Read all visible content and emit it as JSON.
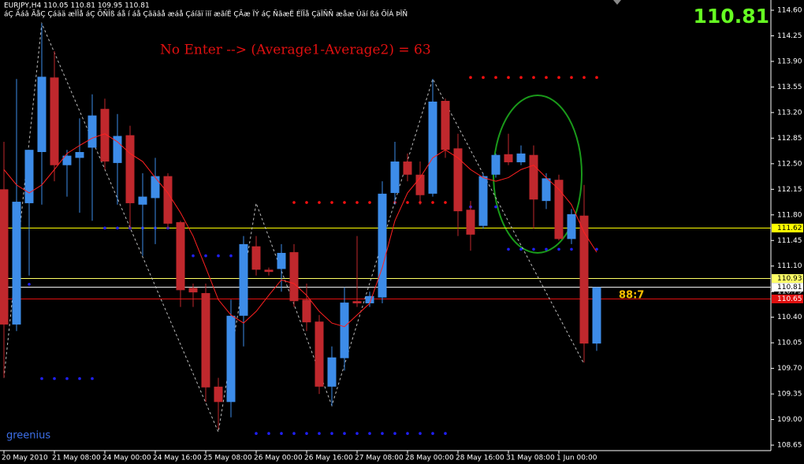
{
  "chart_data": {
    "type": "candlestick",
    "title": "EURJPY,H4  110.05 110.81 109.95 110.81",
    "subtitle": "áÇ Ãáâ ÃåÇ Çáää æÏÎå áÇ ÕÑÎß áå í áå Çãäâå æáå Çáíãï ïíí æãíË ÇÃæ ÏÝ áÇ ÑãæË ÉÏÎå ÇäÏÑÑ æåæ Úäí ßá ÕÍÁ ÞÏÑ",
    "annotation": "No Enter --> (Average1-Average2) = 63",
    "counter": "88:7",
    "price_display": "110.81",
    "signature": "greenius",
    "categories": [
      "20 May 2010",
      null,
      null,
      null,
      "21 May 08:00",
      null,
      null,
      null,
      "24 May 00:00",
      null,
      null,
      null,
      "24 May 16:00",
      null,
      null,
      null,
      "25 May 08:00",
      null,
      null,
      null,
      "26 May 00:00",
      null,
      null,
      null,
      "26 May 16:00",
      null,
      null,
      null,
      "27 May 08:00",
      null,
      null,
      null,
      "28 May 00:00",
      null,
      null,
      null,
      "28 May 16:00",
      null,
      null,
      null,
      "31 May 08:00",
      null,
      null,
      null,
      "1 Jun 00:00",
      null,
      null,
      null
    ],
    "open": [
      112.15,
      110.3,
      111.96,
      112.66,
      113.68,
      112.48,
      112.58,
      112.72,
      113.25,
      112.51,
      112.89,
      111.94,
      112.03,
      112.33,
      111.7,
      110.8,
      110.73,
      109.45,
      109.24,
      110.42,
      111.37,
      111.05,
      111.06,
      111.29,
      110.64,
      110.34,
      109.45,
      109.84,
      110.62,
      110.59,
      110.67,
      112.1,
      112.53,
      112.35,
      112.09,
      113.36,
      112.71,
      111.87,
      111.65,
      112.35,
      112.63,
      112.52,
      112.62,
      111.99,
      112.28,
      111.47,
      111.79,
      110.04
    ],
    "high": [
      112.8,
      113.66,
      112.69,
      114.42,
      114.04,
      112.69,
      113.12,
      113.45,
      113.39,
      113.18,
      113.02,
      112.37,
      112.58,
      112.37,
      111.72,
      110.86,
      110.86,
      109.57,
      110.64,
      111.51,
      111.51,
      111.08,
      111.4,
      111.4,
      110.86,
      110.43,
      110.0,
      110.81,
      111.51,
      110.75,
      112.26,
      112.8,
      112.64,
      112.53,
      113.66,
      113.39,
      112.91,
      111.99,
      112.37,
      112.64,
      112.91,
      112.75,
      112.75,
      112.37,
      112.35,
      111.88,
      112.21,
      110.81
    ],
    "low": [
      109.57,
      110.21,
      110.97,
      111.94,
      112.26,
      112.05,
      111.83,
      111.72,
      112.42,
      111.94,
      111.61,
      111.24,
      111.4,
      111.61,
      110.54,
      110.54,
      109.24,
      108.87,
      109.03,
      110.0,
      110.97,
      110.97,
      110.75,
      110.54,
      110.21,
      109.35,
      109.19,
      109.67,
      110.54,
      110.54,
      110.59,
      111.94,
      112.26,
      111.94,
      112.05,
      112.58,
      111.51,
      111.31,
      111.61,
      112.31,
      112.48,
      112.48,
      111.61,
      111.88,
      111.45,
      111.4,
      109.78,
      109.94
    ],
    "close": [
      110.3,
      111.98,
      112.69,
      113.69,
      112.48,
      112.61,
      112.66,
      113.16,
      112.53,
      112.88,
      111.96,
      112.05,
      112.33,
      111.68,
      110.77,
      110.74,
      109.44,
      109.24,
      110.42,
      111.4,
      111.05,
      111.02,
      111.28,
      110.62,
      110.33,
      109.45,
      109.85,
      110.6,
      110.59,
      110.69,
      112.09,
      112.53,
      112.35,
      112.07,
      113.35,
      112.69,
      111.85,
      111.53,
      112.33,
      112.62,
      112.52,
      112.64,
      112.01,
      112.3,
      111.47,
      111.81,
      110.04,
      110.81
    ],
    "ma": [
      112.42,
      112.21,
      112.1,
      112.21,
      112.42,
      112.64,
      112.75,
      112.85,
      112.91,
      112.8,
      112.64,
      112.53,
      112.31,
      112.1,
      111.83,
      111.51,
      111.08,
      110.64,
      110.43,
      110.32,
      110.48,
      110.7,
      110.91,
      110.86,
      110.7,
      110.48,
      110.32,
      110.27,
      110.43,
      110.59,
      111.08,
      111.72,
      112.1,
      112.31,
      112.58,
      112.69,
      112.58,
      112.42,
      112.31,
      112.26,
      112.31,
      112.42,
      112.48,
      112.31,
      112.15,
      111.94,
      111.56,
      111.29
    ],
    "zigzag": {
      "x": [
        0,
        3,
        17,
        20,
        26,
        34,
        46
      ],
      "values": [
        109.57,
        114.42,
        108.83,
        111.96,
        109.19,
        113.66,
        109.76
      ]
    },
    "dot_levels": [
      {
        "value": 110.85,
        "from": 1,
        "to": 2,
        "color": "#2020ff"
      },
      {
        "value": 109.56,
        "from": 3,
        "to": 7,
        "color": "#2020ff"
      },
      {
        "value": 111.62,
        "from": 8,
        "to": 13,
        "color": "#2020ff"
      },
      {
        "value": 111.24,
        "from": 14,
        "to": 19,
        "color": "#2020ff"
      },
      {
        "value": 108.81,
        "from": 20,
        "to": 35,
        "color": "#2020ff"
      },
      {
        "value": 111.97,
        "from": 23,
        "to": 35,
        "color": "#ff1010"
      },
      {
        "value": 111.91,
        "from": 36,
        "to": 39,
        "color": "#2020ff"
      },
      {
        "value": 111.33,
        "from": 40,
        "to": 47,
        "color": "#2020ff"
      },
      {
        "value": 113.68,
        "from": 37,
        "to": 47,
        "color": "#ff1010"
      }
    ],
    "levels": [
      {
        "value": 111.62,
        "color": "#ffff00",
        "text_color": "#000000"
      },
      {
        "value": 110.93,
        "color": "#ffff66",
        "text_color": "#000000"
      },
      {
        "value": 110.81,
        "color": "#ffffff",
        "text_color": "#000000"
      },
      {
        "value": 110.65,
        "color": "#e01010",
        "text_color": "#ffffff"
      }
    ],
    "up_color": "#3d8ce8",
    "down_color": "#c0282d",
    "ma_color": "#ff2020",
    "ylim": [
      108.575,
      114.74
    ],
    "yticks": [
      {
        "value": 114.6,
        "label": "114.60"
      },
      114.25,
      {
        "value": 113.9,
        "label": "113.90"
      },
      113.55,
      {
        "value": 113.2,
        "label": "113.20"
      },
      112.85,
      {
        "value": 112.5,
        "label": "112.50"
      },
      112.15,
      {
        "value": 111.8,
        "label": "111.80"
      },
      111.45,
      {
        "value": 111.1,
        "label": "111.10"
      },
      110.75,
      {
        "value": 110.4,
        "label": "110.40"
      },
      110.05,
      {
        "value": 109.7,
        "label": "109.70"
      },
      109.35,
      {
        "value": 109.0,
        "label": "109.00"
      },
      108.65
    ]
  }
}
